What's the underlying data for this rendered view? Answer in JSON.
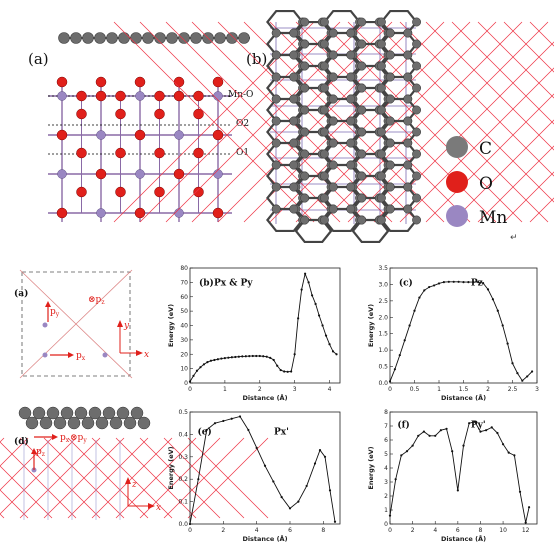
{
  "top": {
    "panel_a_label": "(a)",
    "panel_b_label": "(b)",
    "layer_labels": [
      "Mn-O",
      "O2",
      "O1"
    ],
    "legend": [
      {
        "name": "C",
        "color": "#7a7a7a"
      },
      {
        "name": "O",
        "color": "#e0201b"
      },
      {
        "name": "Mn",
        "color": "#9a87c2"
      }
    ],
    "return_mark": "↵"
  },
  "schem_a": {
    "label": "(a)",
    "pz": "⊗p",
    "pz_sub": "z",
    "py": "p",
    "py_sub": "y",
    "px": "p",
    "px_sub": "x",
    "y": "y",
    "x": "x"
  },
  "schem_d": {
    "label": "(d)",
    "px": "p",
    "px_sub": "x",
    "pz": "p",
    "pz_sub": "z",
    "py": "⊗p",
    "py_sub": "y",
    "z": "z",
    "x": "x"
  },
  "chart_data": [
    {
      "type": "line",
      "panel": "(b)",
      "title": "Px & Py",
      "xlabel": "Distance (Å)",
      "ylabel": "Energy (eV)",
      "xlim": [
        0,
        4.3
      ],
      "ylim": [
        0,
        80
      ],
      "xticks": [
        0,
        1,
        2,
        3,
        4
      ],
      "yticks": [
        0,
        10,
        20,
        30,
        40,
        50,
        60,
        70,
        80
      ],
      "x": [
        0,
        0.1,
        0.2,
        0.3,
        0.4,
        0.5,
        0.6,
        0.7,
        0.8,
        0.9,
        1.0,
        1.1,
        1.2,
        1.3,
        1.4,
        1.5,
        1.6,
        1.7,
        1.8,
        1.9,
        2.0,
        2.1,
        2.2,
        2.3,
        2.4,
        2.5,
        2.6,
        2.7,
        2.8,
        2.9,
        3.0,
        3.1,
        3.2,
        3.3,
        3.4,
        3.5,
        3.6,
        3.7,
        3.8,
        3.9,
        4.0,
        4.1,
        4.2
      ],
      "y": [
        1,
        5,
        8.5,
        11,
        13,
        14.5,
        15.5,
        16,
        16.5,
        17,
        17.3,
        17.6,
        17.9,
        18.1,
        18.3,
        18.5,
        18.6,
        18.7,
        18.8,
        18.8,
        18.8,
        18.6,
        18.3,
        17.5,
        16,
        12,
        9,
        8,
        7.8,
        8,
        20,
        45,
        65,
        76,
        70,
        61,
        55,
        47,
        40,
        33,
        27,
        22,
        20
      ]
    },
    {
      "type": "line",
      "panel": "(c)",
      "title": "Pz",
      "xlabel": "Distance (Å)",
      "ylabel": "Energy (eV)",
      "xlim": [
        0,
        3
      ],
      "ylim": [
        0,
        3.5
      ],
      "xticks": [
        0,
        0.5,
        1.0,
        1.5,
        2.0,
        2.5,
        3.0
      ],
      "yticks": [
        0,
        0.5,
        1.0,
        1.5,
        2.0,
        2.5,
        3.0,
        3.5
      ],
      "x": [
        0,
        0.1,
        0.2,
        0.3,
        0.4,
        0.5,
        0.6,
        0.7,
        0.8,
        0.9,
        1.0,
        1.1,
        1.2,
        1.3,
        1.4,
        1.5,
        1.6,
        1.7,
        1.8,
        1.9,
        2.0,
        2.1,
        2.2,
        2.3,
        2.4,
        2.5,
        2.6,
        2.7,
        2.8,
        2.9
      ],
      "y": [
        0.05,
        0.42,
        0.85,
        1.3,
        1.75,
        2.2,
        2.6,
        2.82,
        2.92,
        2.97,
        3.03,
        3.07,
        3.08,
        3.08,
        3.08,
        3.07,
        3.07,
        3.07,
        3.07,
        3.04,
        2.85,
        2.55,
        2.2,
        1.75,
        1.2,
        0.6,
        0.3,
        0.07,
        0.2,
        0.35
      ]
    },
    {
      "type": "line",
      "panel": "(e)",
      "title": "Px'",
      "xlabel": "Distance (Å)",
      "ylabel": "Energy (eV)",
      "xlim": [
        0,
        9
      ],
      "ylim": [
        0,
        0.5
      ],
      "xticks": [
        0,
        2,
        4,
        6,
        8
      ],
      "yticks": [
        0.0,
        0.1,
        0.2,
        0.3,
        0.4,
        0.5
      ],
      "x": [
        0,
        0.5,
        1.0,
        1.5,
        2.0,
        2.5,
        3.0,
        3.5,
        4.0,
        4.5,
        5.0,
        5.5,
        6.0,
        6.5,
        7.0,
        7.5,
        7.8,
        8.1,
        8.4,
        8.7
      ],
      "y": [
        0,
        0.2,
        0.42,
        0.45,
        0.46,
        0.47,
        0.48,
        0.42,
        0.34,
        0.26,
        0.19,
        0.12,
        0.07,
        0.1,
        0.17,
        0.27,
        0.33,
        0.3,
        0.15,
        0.01
      ]
    },
    {
      "type": "line",
      "panel": "(f)",
      "title": "Py'",
      "xlabel": "Distance (Å)",
      "ylabel": "Energy (eV)",
      "xlim": [
        0,
        13
      ],
      "ylim": [
        0,
        8
      ],
      "xticks": [
        0,
        2,
        4,
        6,
        8,
        10,
        12
      ],
      "yticks": [
        0,
        1,
        2,
        3,
        4,
        5,
        6,
        7,
        8
      ],
      "x": [
        0,
        0.5,
        1.0,
        1.5,
        2.0,
        2.5,
        3.0,
        3.5,
        4.0,
        4.5,
        5.0,
        5.5,
        6.0,
        6.5,
        7.0,
        7.5,
        8.0,
        8.5,
        9.0,
        9.5,
        10.0,
        10.5,
        11.0,
        11.5,
        12.0,
        12.3
      ],
      "y": [
        0.6,
        3.2,
        4.9,
        5.2,
        5.6,
        6.3,
        6.6,
        6.3,
        6.3,
        6.7,
        6.8,
        5.2,
        2.4,
        5.6,
        7.2,
        7.3,
        6.6,
        6.7,
        6.9,
        6.5,
        5.7,
        5.1,
        4.9,
        2.3,
        0.1,
        1.2
      ]
    }
  ]
}
